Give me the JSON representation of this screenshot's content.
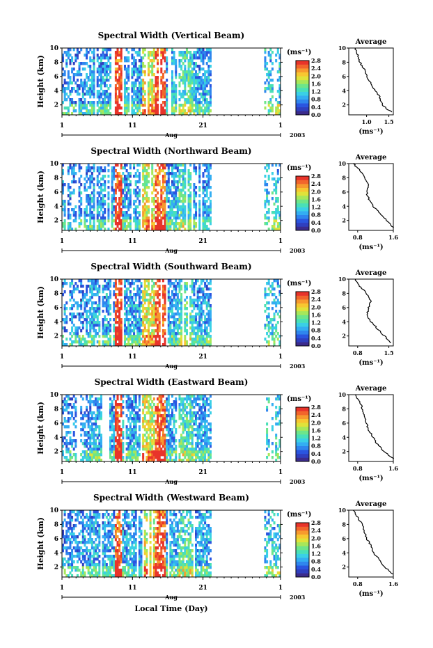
{
  "colorbar": {
    "unit": "(ms⁻¹)",
    "ticks": [
      "0.0",
      "0.4",
      "0.8",
      "1.2",
      "1.6",
      "2.0",
      "2.4",
      "2.8"
    ],
    "colors": [
      "#3b2b8c",
      "#2f3fbf",
      "#2a55e0",
      "#2f86ee",
      "#33aef2",
      "#3ad0e6",
      "#49e0b7",
      "#6de58a",
      "#a7e75a",
      "#e0e23a",
      "#f7c731",
      "#f79a2e",
      "#f2652c",
      "#e8342a"
    ]
  },
  "panels": [
    {
      "title": "Spectral Width (Vertical Beam)",
      "avg_title": "Average",
      "avg_xticks": [
        "1.0",
        "1.5"
      ],
      "avg_xrange": [
        0.6,
        1.6
      ]
    },
    {
      "title": "Spectral Width (Northward Beam)",
      "avg_title": "Average",
      "avg_xticks": [
        "0.8",
        "1.6"
      ],
      "avg_xrange": [
        0.6,
        1.6
      ]
    },
    {
      "title": "Spectral Width (Southward Beam)",
      "avg_title": "Average",
      "avg_xticks": [
        "0.8",
        "1.5"
      ],
      "avg_xrange": [
        0.6,
        1.6
      ]
    },
    {
      "title": "Spectral Width (Eastward Beam)",
      "avg_title": "Average",
      "avg_xticks": [
        "0.8",
        "1.6"
      ],
      "avg_xrange": [
        0.6,
        1.6
      ]
    },
    {
      "title": "Spectral Width (Westward Beam)",
      "avg_title": "Average",
      "avg_xticks": [
        "0.8",
        "1.6"
      ],
      "avg_xrange": [
        0.6,
        1.6
      ]
    }
  ],
  "axes": {
    "ylabel": "Height (km)",
    "yticks": [
      2,
      4,
      6,
      8,
      10
    ],
    "ylim": [
      0.6,
      10
    ],
    "xticks": [
      "1",
      "11",
      "21",
      "1"
    ],
    "month": "Aug",
    "year": "2003",
    "xlabel": "Local Time (Day)",
    "avg_xlabel": "(ms⁻¹)"
  },
  "chart_data": [
    {
      "type": "heatmap",
      "title": "Spectral Width (Vertical Beam)",
      "ylabel": "Height (km)",
      "ylim": [
        0.6,
        10
      ],
      "xlim_days": [
        1,
        32
      ],
      "colorbar_range": [
        0,
        2.8
      ],
      "average_profile": {
        "height_km": [
          1,
          2,
          3,
          4,
          5,
          6,
          7,
          8,
          9,
          10
        ],
        "width_ms": [
          1.55,
          1.35,
          1.3,
          1.2,
          1.1,
          1.0,
          0.95,
          0.85,
          0.8,
          0.75
        ]
      }
    },
    {
      "type": "heatmap",
      "title": "Spectral Width (Northward Beam)",
      "ylabel": "Height (km)",
      "ylim": [
        0.6,
        10
      ],
      "xlim_days": [
        1,
        32
      ],
      "colorbar_range": [
        0,
        2.8
      ],
      "average_profile": {
        "height_km": [
          1,
          2,
          3,
          4,
          5,
          6,
          7,
          8,
          9,
          10
        ],
        "width_ms": [
          1.6,
          1.45,
          1.3,
          1.15,
          1.05,
          1.0,
          1.05,
          0.95,
          0.85,
          0.7
        ]
      }
    },
    {
      "type": "heatmap",
      "title": "Spectral Width (Southward Beam)",
      "ylabel": "Height (km)",
      "ylim": [
        0.6,
        10
      ],
      "xlim_days": [
        1,
        32
      ],
      "colorbar_range": [
        0,
        2.8
      ],
      "average_profile": {
        "height_km": [
          1,
          2,
          3,
          4,
          5,
          6,
          7,
          8,
          9,
          10
        ],
        "width_ms": [
          1.55,
          1.4,
          1.25,
          1.1,
          1.0,
          1.05,
          1.1,
          1.0,
          0.85,
          0.75
        ]
      }
    },
    {
      "type": "heatmap",
      "title": "Spectral Width (Eastward Beam)",
      "ylabel": "Height (km)",
      "ylim": [
        0.6,
        10
      ],
      "xlim_days": [
        1,
        32
      ],
      "colorbar_range": [
        0,
        2.8
      ],
      "average_profile": {
        "height_km": [
          1,
          2,
          3,
          4,
          5,
          6,
          7,
          8,
          9,
          10
        ],
        "width_ms": [
          1.6,
          1.4,
          1.25,
          1.15,
          1.05,
          1.0,
          0.95,
          0.9,
          0.85,
          0.75
        ]
      }
    },
    {
      "type": "heatmap",
      "title": "Spectral Width (Westward Beam)",
      "ylabel": "Height (km)",
      "ylim": [
        0.6,
        10
      ],
      "xlim_days": [
        1,
        32
      ],
      "colorbar_range": [
        0,
        2.8
      ],
      "average_profile": {
        "height_km": [
          1,
          2,
          3,
          4,
          5,
          6,
          7,
          8,
          9,
          10
        ],
        "width_ms": [
          1.6,
          1.4,
          1.3,
          1.15,
          1.1,
          1.0,
          0.95,
          0.9,
          0.8,
          0.7
        ]
      }
    }
  ]
}
